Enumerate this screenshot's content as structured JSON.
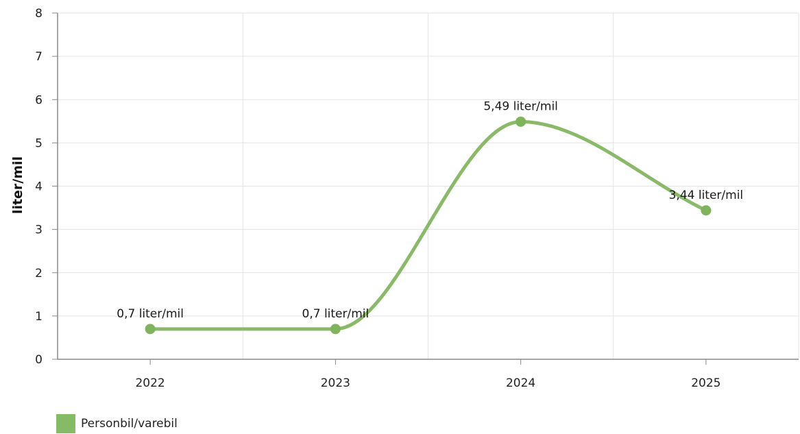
{
  "chart_data": {
    "type": "line",
    "categories": [
      "2022",
      "2023",
      "2024",
      "2025"
    ],
    "series": [
      {
        "name": "Personbil/varebil",
        "values": [
          0.7,
          0.7,
          5.49,
          3.44
        ],
        "labels": [
          "0,7 liter/mil",
          "0,7 liter/mil",
          "5,49 liter/mil",
          "3,44 liter/mil"
        ],
        "color": "#8ab96a",
        "marker_color": "#7fb45c",
        "smooth": true
      }
    ],
    "ylabel": "liter/mil",
    "xlabel": "",
    "ylim": [
      0,
      8
    ],
    "yticks": [
      "0",
      "1",
      "2",
      "3",
      "4",
      "5",
      "6",
      "7",
      "8"
    ],
    "grid": true,
    "legend_position": "bottom-left",
    "colors": {
      "grid": "#e3e3e3",
      "axis": "#888888",
      "legend_swatch": "#85bb65"
    }
  }
}
